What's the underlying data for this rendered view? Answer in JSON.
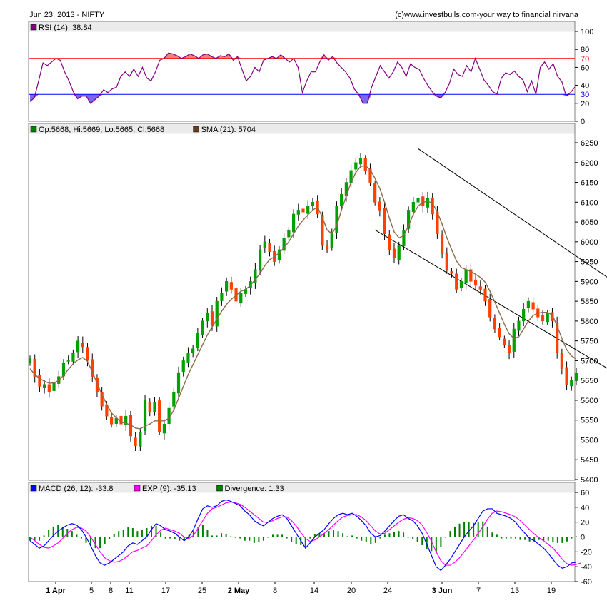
{
  "header": {
    "left": "Jun 23, 2013 -  NIFTY",
    "right": "(c)www.investbulls.com-your way to financial nirvana"
  },
  "chart_data": [
    {
      "panel": "rsi",
      "type": "line",
      "legend": [
        {
          "label": "RSI (14): 38.84",
          "color": "#800080"
        }
      ],
      "ylim": [
        0,
        100
      ],
      "yticks": [
        0,
        20,
        40,
        60,
        80,
        100
      ],
      "ref_lines": [
        {
          "value": 70,
          "color": "#ff0000",
          "label": "70"
        },
        {
          "value": 30,
          "color": "#0000ff",
          "label": "30"
        }
      ],
      "series": [
        {
          "color": "#800080",
          "values": [
            22,
            26,
            45,
            65,
            62,
            66,
            70,
            68,
            55,
            45,
            33,
            25,
            28,
            28,
            20,
            24,
            28,
            35,
            32,
            36,
            38,
            50,
            55,
            50,
            58,
            50,
            60,
            48,
            45,
            55,
            68,
            70,
            76,
            75,
            73,
            70,
            72,
            75,
            73,
            70,
            74,
            75,
            72,
            70,
            73,
            72,
            75,
            68,
            72,
            58,
            45,
            50,
            60,
            55,
            68,
            70,
            72,
            70,
            74,
            70,
            66,
            70,
            60,
            32,
            45,
            55,
            55,
            66,
            74,
            68,
            72,
            65,
            60,
            55,
            48,
            36,
            30,
            20,
            20,
            38,
            50,
            62,
            55,
            48,
            55,
            66,
            60,
            50,
            64,
            60,
            58,
            48,
            40,
            33,
            28,
            26,
            32,
            42,
            58,
            52,
            50,
            62,
            55,
            70,
            58,
            46,
            40,
            33,
            30,
            48,
            54,
            52,
            56,
            50,
            46,
            33,
            45,
            30,
            60,
            66,
            58,
            64,
            50,
            44,
            28,
            32,
            38
          ]
        }
      ]
    },
    {
      "panel": "price",
      "type": "candlestick",
      "legend": [
        {
          "label": "Op:5668, Hi:5669, Lo:5665, Cl:5668",
          "color": "#008000"
        },
        {
          "label": "SMA (21): 5704",
          "color": "#6b3d1e"
        }
      ],
      "ylim": [
        5400,
        6250
      ],
      "yticks": [
        5400,
        5450,
        5500,
        5550,
        5600,
        5650,
        5700,
        5750,
        5800,
        5850,
        5900,
        5950,
        6000,
        6050,
        6100,
        6150,
        6200,
        6250
      ],
      "x_ticks": [
        "1 Apr",
        "5",
        "8",
        "11",
        "17",
        "25",
        "2 May",
        "8",
        "14",
        "20",
        "24",
        "3 Jun",
        "7",
        "13",
        "19"
      ],
      "close": [
        5705,
        5660,
        5635,
        5640,
        5620,
        5645,
        5660,
        5695,
        5700,
        5720,
        5750,
        5735,
        5700,
        5660,
        5620,
        5585,
        5560,
        5540,
        5555,
        5540,
        5560,
        5510,
        5485,
        5520,
        5600,
        5570,
        5595,
        5520,
        5540,
        5580,
        5620,
        5670,
        5700,
        5720,
        5730,
        5770,
        5800,
        5820,
        5790,
        5850,
        5870,
        5900,
        5880,
        5850,
        5870,
        5880,
        5900,
        5930,
        5980,
        6000,
        5975,
        5950,
        5980,
        6010,
        6030,
        6070,
        6080,
        6075,
        6090,
        6100,
        6070,
        5990,
        5980,
        6025,
        6090,
        6120,
        6150,
        6180,
        6200,
        6210,
        6180,
        6150,
        6100,
        6080,
        6020,
        5980,
        5960,
        5990,
        6030,
        6080,
        6100,
        6110,
        6090,
        6110,
        6070,
        6020,
        5970,
        5930,
        5920,
        5880,
        5900,
        5930,
        5900,
        5890,
        5880,
        5850,
        5810,
        5780,
        5760,
        5740,
        5720,
        5780,
        5800,
        5830,
        5850,
        5830,
        5810,
        5800,
        5820,
        5800,
        5720,
        5680,
        5640,
        5650,
        5668
      ],
      "sma": [
        5680,
        5665,
        5655,
        5648,
        5643,
        5644,
        5650,
        5663,
        5678,
        5692,
        5702,
        5708,
        5698,
        5672,
        5642,
        5615,
        5590,
        5568,
        5556,
        5545,
        5542,
        5538,
        5530,
        5528,
        5535,
        5540,
        5548,
        5548,
        5548,
        5555,
        5575,
        5605,
        5635,
        5665,
        5690,
        5715,
        5740,
        5765,
        5785,
        5805,
        5825,
        5842,
        5855,
        5865,
        5875,
        5880,
        5890,
        5905,
        5920,
        5940,
        5955,
        5962,
        5972,
        5985,
        6000,
        6020,
        6040,
        6055,
        6068,
        6080,
        6088,
        6062,
        6030,
        6020,
        6040,
        6080,
        6115,
        6150,
        6175,
        6190,
        6192,
        6182,
        6160,
        6135,
        6100,
        6060,
        6025,
        6010,
        6015,
        6040,
        6070,
        6090,
        6100,
        6102,
        6098,
        6075,
        6045,
        6010,
        5980,
        5952,
        5935,
        5930,
        5925,
        5918,
        5910,
        5898,
        5875,
        5848,
        5820,
        5792,
        5768,
        5756,
        5760,
        5780,
        5800,
        5814,
        5820,
        5822,
        5822,
        5815,
        5788,
        5756,
        5728,
        5712,
        5704
      ],
      "channel": {
        "upper": [
          {
            "x": 81,
            "y": 6235
          },
          {
            "x": 140,
            "y": 5750
          }
        ],
        "lower": [
          {
            "x": 72,
            "y": 6030
          },
          {
            "x": 140,
            "y": 5540
          }
        ]
      }
    },
    {
      "panel": "macd",
      "type": "line",
      "legend": [
        {
          "label": "MACD (26, 12): -33.8",
          "color": "#0000ff"
        },
        {
          "label": "EXP (9): -35.13",
          "color": "#ff00ff"
        },
        {
          "label": "Divergence: 1.33",
          "color": "#008000"
        }
      ],
      "ylim": [
        -60,
        60
      ],
      "yticks": [
        -60,
        -40,
        -20,
        0,
        20,
        40,
        60
      ],
      "macd": [
        -5,
        -10,
        -15,
        -12,
        -5,
        2,
        8,
        12,
        16,
        18,
        16,
        10,
        0,
        -12,
        -25,
        -35,
        -38,
        -35,
        -30,
        -25,
        -20,
        -12,
        -8,
        -10,
        -5,
        0,
        10,
        18,
        15,
        10,
        8,
        5,
        0,
        -5,
        0,
        10,
        25,
        38,
        42,
        40,
        42,
        48,
        50,
        48,
        45,
        42,
        35,
        30,
        22,
        18,
        15,
        20,
        25,
        28,
        30,
        25,
        15,
        5,
        -5,
        -15,
        -8,
        0,
        5,
        10,
        18,
        25,
        30,
        32,
        30,
        32,
        28,
        22,
        15,
        5,
        0,
        2,
        8,
        15,
        22,
        28,
        30,
        25,
        22,
        15,
        5,
        -10,
        -25,
        -40,
        -45,
        -38,
        -30,
        -20,
        -10,
        0,
        8,
        15,
        25,
        35,
        38,
        38,
        32,
        30,
        28,
        25,
        20,
        12,
        5,
        -2,
        -5,
        -10,
        -15,
        -22,
        -30,
        -38,
        -42,
        -40,
        -35,
        -34
      ],
      "exp": [
        0,
        -5,
        -10,
        -14,
        -15,
        -12,
        -8,
        -2,
        5,
        10,
        13,
        12,
        8,
        0,
        -10,
        -20,
        -28,
        -32,
        -34,
        -33,
        -30,
        -25,
        -20,
        -18,
        -15,
        -12,
        -5,
        3,
        9,
        12,
        10,
        8,
        5,
        0,
        -2,
        2,
        12,
        22,
        32,
        38,
        40,
        43,
        46,
        47,
        46,
        44,
        40,
        35,
        30,
        25,
        20,
        20,
        22,
        25,
        27,
        27,
        22,
        15,
        6,
        -2,
        -6,
        -4,
        0,
        5,
        10,
        16,
        22,
        27,
        29,
        30,
        30,
        27,
        22,
        15,
        8,
        4,
        5,
        10,
        15,
        20,
        24,
        26,
        25,
        22,
        16,
        6,
        -6,
        -20,
        -32,
        -38,
        -38,
        -34,
        -28,
        -20,
        -12,
        -4,
        5,
        14,
        24,
        32,
        35,
        34,
        32,
        30,
        27,
        22,
        16,
        10,
        4,
        -1,
        -5,
        -10,
        -15,
        -22,
        -30,
        -36,
        -38,
        -37,
        -35
      ],
      "divergence": [
        -5,
        -5,
        -5,
        2,
        10,
        14,
        16,
        14,
        11,
        8,
        3,
        -2,
        -8,
        -12,
        -15,
        -15,
        -10,
        -3,
        4,
        8,
        10,
        13,
        12,
        8,
        10,
        12,
        15,
        15,
        6,
        -2,
        -2,
        -3,
        -5,
        -5,
        2,
        8,
        13,
        16,
        10,
        2,
        2,
        5,
        4,
        1,
        -1,
        -2,
        -5,
        -5,
        -8,
        -7,
        -5,
        0,
        3,
        3,
        3,
        -2,
        -7,
        -10,
        -11,
        -13,
        -2,
        4,
        5,
        5,
        8,
        9,
        8,
        5,
        1,
        2,
        -2,
        -5,
        -7,
        -10,
        -8,
        -2,
        3,
        5,
        7,
        8,
        6,
        -1,
        -3,
        -7,
        -11,
        -16,
        -19,
        -20,
        -13,
        0,
        8,
        14,
        18,
        20,
        20,
        19,
        20,
        21,
        14,
        6,
        3,
        -2,
        -2,
        -2,
        -2,
        -4,
        -4,
        -6,
        -6,
        -4,
        -5,
        -5,
        -7,
        -8,
        -8,
        -6,
        -2,
        1,
        1
      ]
    }
  ]
}
